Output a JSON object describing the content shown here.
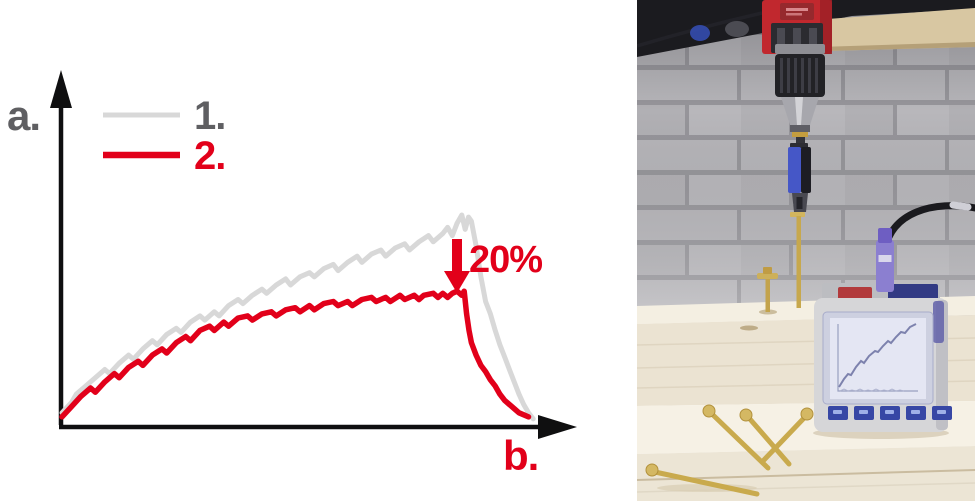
{
  "colors": {
    "accent_red": "#e2001a",
    "series1_gray": "#d8d8d8",
    "label_gray": "#5f5f62",
    "axis_black": "#0f0f10"
  },
  "chart_data": {
    "type": "line",
    "title": "",
    "xlabel": "b.",
    "ylabel": "a.",
    "x_range": [
      0,
      100
    ],
    "y_range": [
      0,
      100
    ],
    "grid": false,
    "legend_position": "top-left",
    "legend": [
      {
        "label": "1."
      },
      {
        "label": "2."
      }
    ],
    "annotation": {
      "text": "20%",
      "arrow": "down",
      "x": 82,
      "y": 66
    },
    "series": [
      {
        "name": "1.",
        "color": "#d8d8d8",
        "width": 5,
        "points": [
          [
            0,
            4
          ],
          [
            2,
            9
          ],
          [
            3,
            13
          ],
          [
            5,
            17
          ],
          [
            7,
            21
          ],
          [
            9,
            25
          ],
          [
            10,
            23
          ],
          [
            12,
            28
          ],
          [
            14,
            32
          ],
          [
            15,
            30
          ],
          [
            17,
            35
          ],
          [
            19,
            39
          ],
          [
            20,
            37
          ],
          [
            22,
            42
          ],
          [
            24,
            45
          ],
          [
            25,
            43
          ],
          [
            27,
            48
          ],
          [
            29,
            51
          ],
          [
            30,
            49
          ],
          [
            32,
            53
          ],
          [
            33,
            51
          ],
          [
            35,
            56
          ],
          [
            37,
            59
          ],
          [
            38,
            57
          ],
          [
            40,
            61
          ],
          [
            42,
            64
          ],
          [
            43,
            62
          ],
          [
            45,
            66
          ],
          [
            47,
            69
          ],
          [
            48,
            66
          ],
          [
            50,
            70
          ],
          [
            52,
            72
          ],
          [
            53,
            70
          ],
          [
            55,
            74
          ],
          [
            57,
            76
          ],
          [
            58,
            73
          ],
          [
            60,
            77
          ],
          [
            62,
            80
          ],
          [
            63,
            77
          ],
          [
            65,
            81
          ],
          [
            67,
            83
          ],
          [
            68,
            80
          ],
          [
            70,
            84
          ],
          [
            72,
            86
          ],
          [
            73,
            83
          ],
          [
            75,
            87
          ],
          [
            77,
            90
          ],
          [
            78,
            87
          ],
          [
            80,
            91
          ],
          [
            81,
            94
          ],
          [
            82,
            90
          ],
          [
            83,
            96
          ],
          [
            84,
            100
          ],
          [
            84.7,
            93
          ],
          [
            85.4,
            99
          ],
          [
            86,
            97
          ],
          [
            87,
            85
          ],
          [
            88,
            70
          ],
          [
            89,
            58
          ],
          [
            90,
            52
          ],
          [
            91,
            44
          ],
          [
            92,
            37
          ],
          [
            93,
            31
          ],
          [
            94,
            25
          ],
          [
            95,
            19
          ],
          [
            96,
            13
          ],
          [
            97,
            8
          ],
          [
            98,
            4
          ],
          [
            99,
            1
          ]
        ]
      },
      {
        "name": "2.",
        "color": "#e2001a",
        "width": 5.5,
        "points": [
          [
            0,
            2
          ],
          [
            2,
            7
          ],
          [
            4,
            12
          ],
          [
            6,
            16
          ],
          [
            7,
            14
          ],
          [
            9,
            19
          ],
          [
            11,
            23
          ],
          [
            12,
            21
          ],
          [
            14,
            26
          ],
          [
            16,
            29
          ],
          [
            17,
            27
          ],
          [
            19,
            32
          ],
          [
            21,
            35
          ],
          [
            22,
            33
          ],
          [
            24,
            38
          ],
          [
            26,
            41
          ],
          [
            27,
            39
          ],
          [
            29,
            44
          ],
          [
            31,
            46
          ],
          [
            32,
            44
          ],
          [
            34,
            48
          ],
          [
            35,
            46
          ],
          [
            37,
            50
          ],
          [
            39,
            51
          ],
          [
            40,
            49
          ],
          [
            42,
            52
          ],
          [
            44,
            53
          ],
          [
            45,
            51
          ],
          [
            47,
            54
          ],
          [
            49,
            55
          ],
          [
            50,
            53
          ],
          [
            52,
            56
          ],
          [
            53,
            54
          ],
          [
            55,
            57
          ],
          [
            57,
            58
          ],
          [
            58,
            56
          ],
          [
            60,
            58
          ],
          [
            61,
            56
          ],
          [
            63,
            59
          ],
          [
            65,
            60
          ],
          [
            66,
            58
          ],
          [
            68,
            60
          ],
          [
            69,
            58
          ],
          [
            71,
            61
          ],
          [
            72,
            59
          ],
          [
            74,
            61
          ],
          [
            75,
            59
          ],
          [
            76,
            61
          ],
          [
            78,
            62
          ],
          [
            79,
            60
          ],
          [
            80,
            62
          ],
          [
            81,
            60
          ],
          [
            82,
            62
          ],
          [
            83,
            63
          ],
          [
            84,
            61
          ],
          [
            84.5,
            63
          ],
          [
            85,
            52
          ],
          [
            85.5,
            44
          ],
          [
            86,
            38
          ],
          [
            87,
            32
          ],
          [
            88,
            27
          ],
          [
            89,
            24
          ],
          [
            90,
            20
          ],
          [
            91,
            17
          ],
          [
            92,
            13
          ],
          [
            93,
            10
          ],
          [
            94,
            8
          ],
          [
            95,
            6
          ],
          [
            96,
            4
          ],
          [
            97,
            3
          ],
          [
            98,
            2
          ]
        ]
      }
    ]
  }
}
